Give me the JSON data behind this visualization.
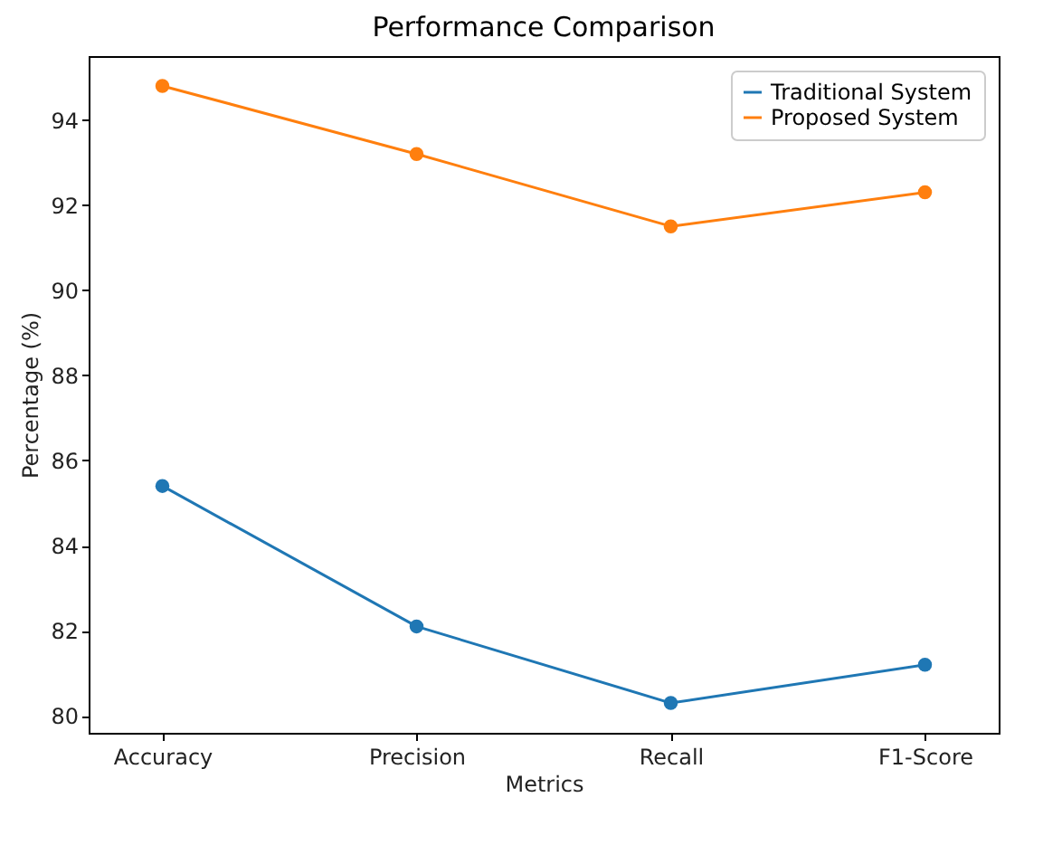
{
  "chart_data": {
    "type": "line",
    "title": "Performance Comparison",
    "xlabel": "Metrics",
    "ylabel": "Percentage (%)",
    "categories": [
      "Accuracy",
      "Precision",
      "Recall",
      "F1-Score"
    ],
    "series": [
      {
        "name": "Traditional System",
        "color": "#1f77b4",
        "values": [
          85.4,
          82.1,
          80.3,
          81.2
        ]
      },
      {
        "name": "Proposed System",
        "color": "#ff7f0e",
        "values": [
          94.8,
          93.2,
          91.5,
          92.3
        ]
      }
    ],
    "ylim": [
      79.6,
      95.5
    ],
    "yticks": [
      80,
      82,
      84,
      86,
      88,
      90,
      92,
      94
    ],
    "grid": false,
    "legend": "top right",
    "marker": "circle",
    "line_style": "solid"
  }
}
